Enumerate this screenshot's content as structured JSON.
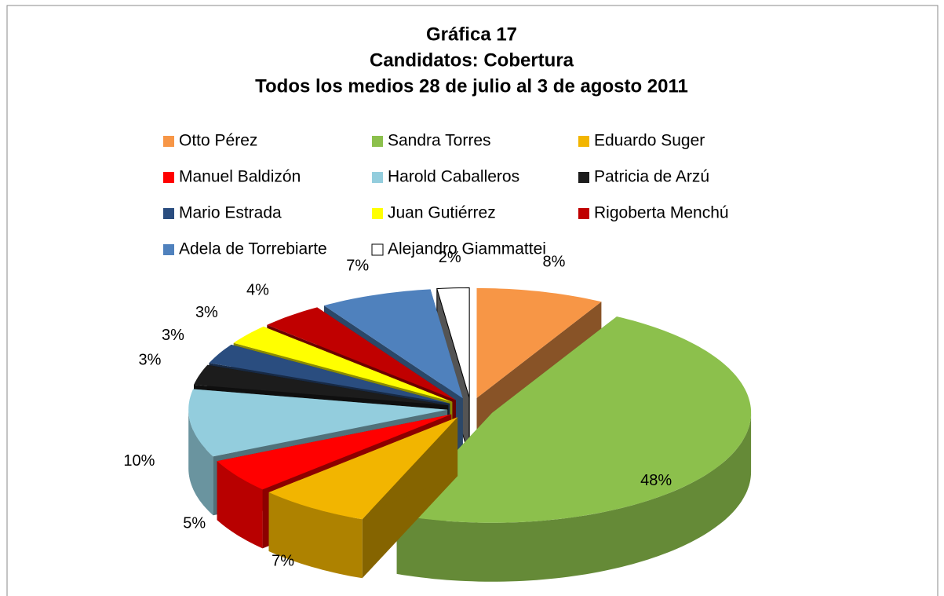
{
  "chart_data": {
    "type": "pie",
    "title": [
      "Gráfica 17",
      "Candidatos: Cobertura",
      "Todos los medios 28 de julio al 3 de agosto 2011"
    ],
    "categories": [
      "Otto Pérez",
      "Sandra Torres",
      "Eduardo Suger",
      "Manuel Baldizón",
      "Harold Caballeros",
      "Patricia de Arzú",
      "Mario Estrada",
      "Juan Gutiérrez",
      "Rigoberta Menchú",
      "Adela de Torrebiarte",
      "Alejandro Giammattei"
    ],
    "values": [
      8,
      48,
      7,
      5,
      10,
      3,
      3,
      3,
      4,
      7,
      2
    ],
    "value_labels": [
      "8%",
      "48%",
      "7%",
      "5%",
      "10%",
      "3%",
      "3%",
      "3%",
      "4%",
      "7%",
      "2%"
    ],
    "colors": [
      "#f79646",
      "#8cc04c",
      "#f2b500",
      "#ff0000",
      "#93cddd",
      "#1c1c1c",
      "#2a4d7f",
      "#ffff00",
      "#c00000",
      "#4f81bd",
      "#ffffff"
    ],
    "legend": "top"
  }
}
